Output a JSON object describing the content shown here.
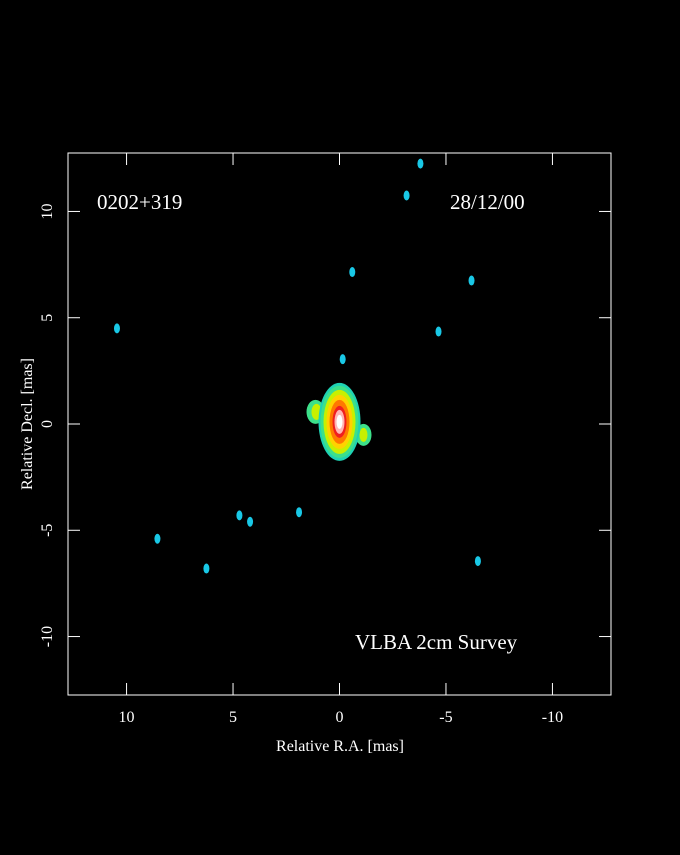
{
  "chart_data": {
    "type": "image",
    "source": "0202+319",
    "epoch": "28/12/00",
    "annotation": "VLBA 2cm Survey",
    "xlabel": "Relative R.A. [mas]",
    "ylabel": "Relative Decl. [mas]",
    "xlim": [
      12.75,
      -12.75
    ],
    "ylim": [
      -12.75,
      12.75
    ],
    "xticks": [
      10,
      5,
      0,
      -5,
      -10
    ],
    "yticks": [
      -10,
      -5,
      0,
      5,
      10
    ],
    "core": {
      "x": 0,
      "y": 0.1
    },
    "spots": {
      "color": "#19c8e6",
      "x": [
        -3.8,
        -3.15,
        -0.6,
        -6.2,
        -4.65,
        -0.15,
        8.55,
        4.7,
        4.2,
        6.25,
        1.9,
        -6.5,
        10.45
      ],
      "y": [
        12.25,
        10.75,
        7.15,
        6.75,
        4.35,
        3.05,
        -5.4,
        -4.3,
        -4.6,
        -6.8,
        -4.15,
        -6.45,
        4.5
      ]
    }
  }
}
